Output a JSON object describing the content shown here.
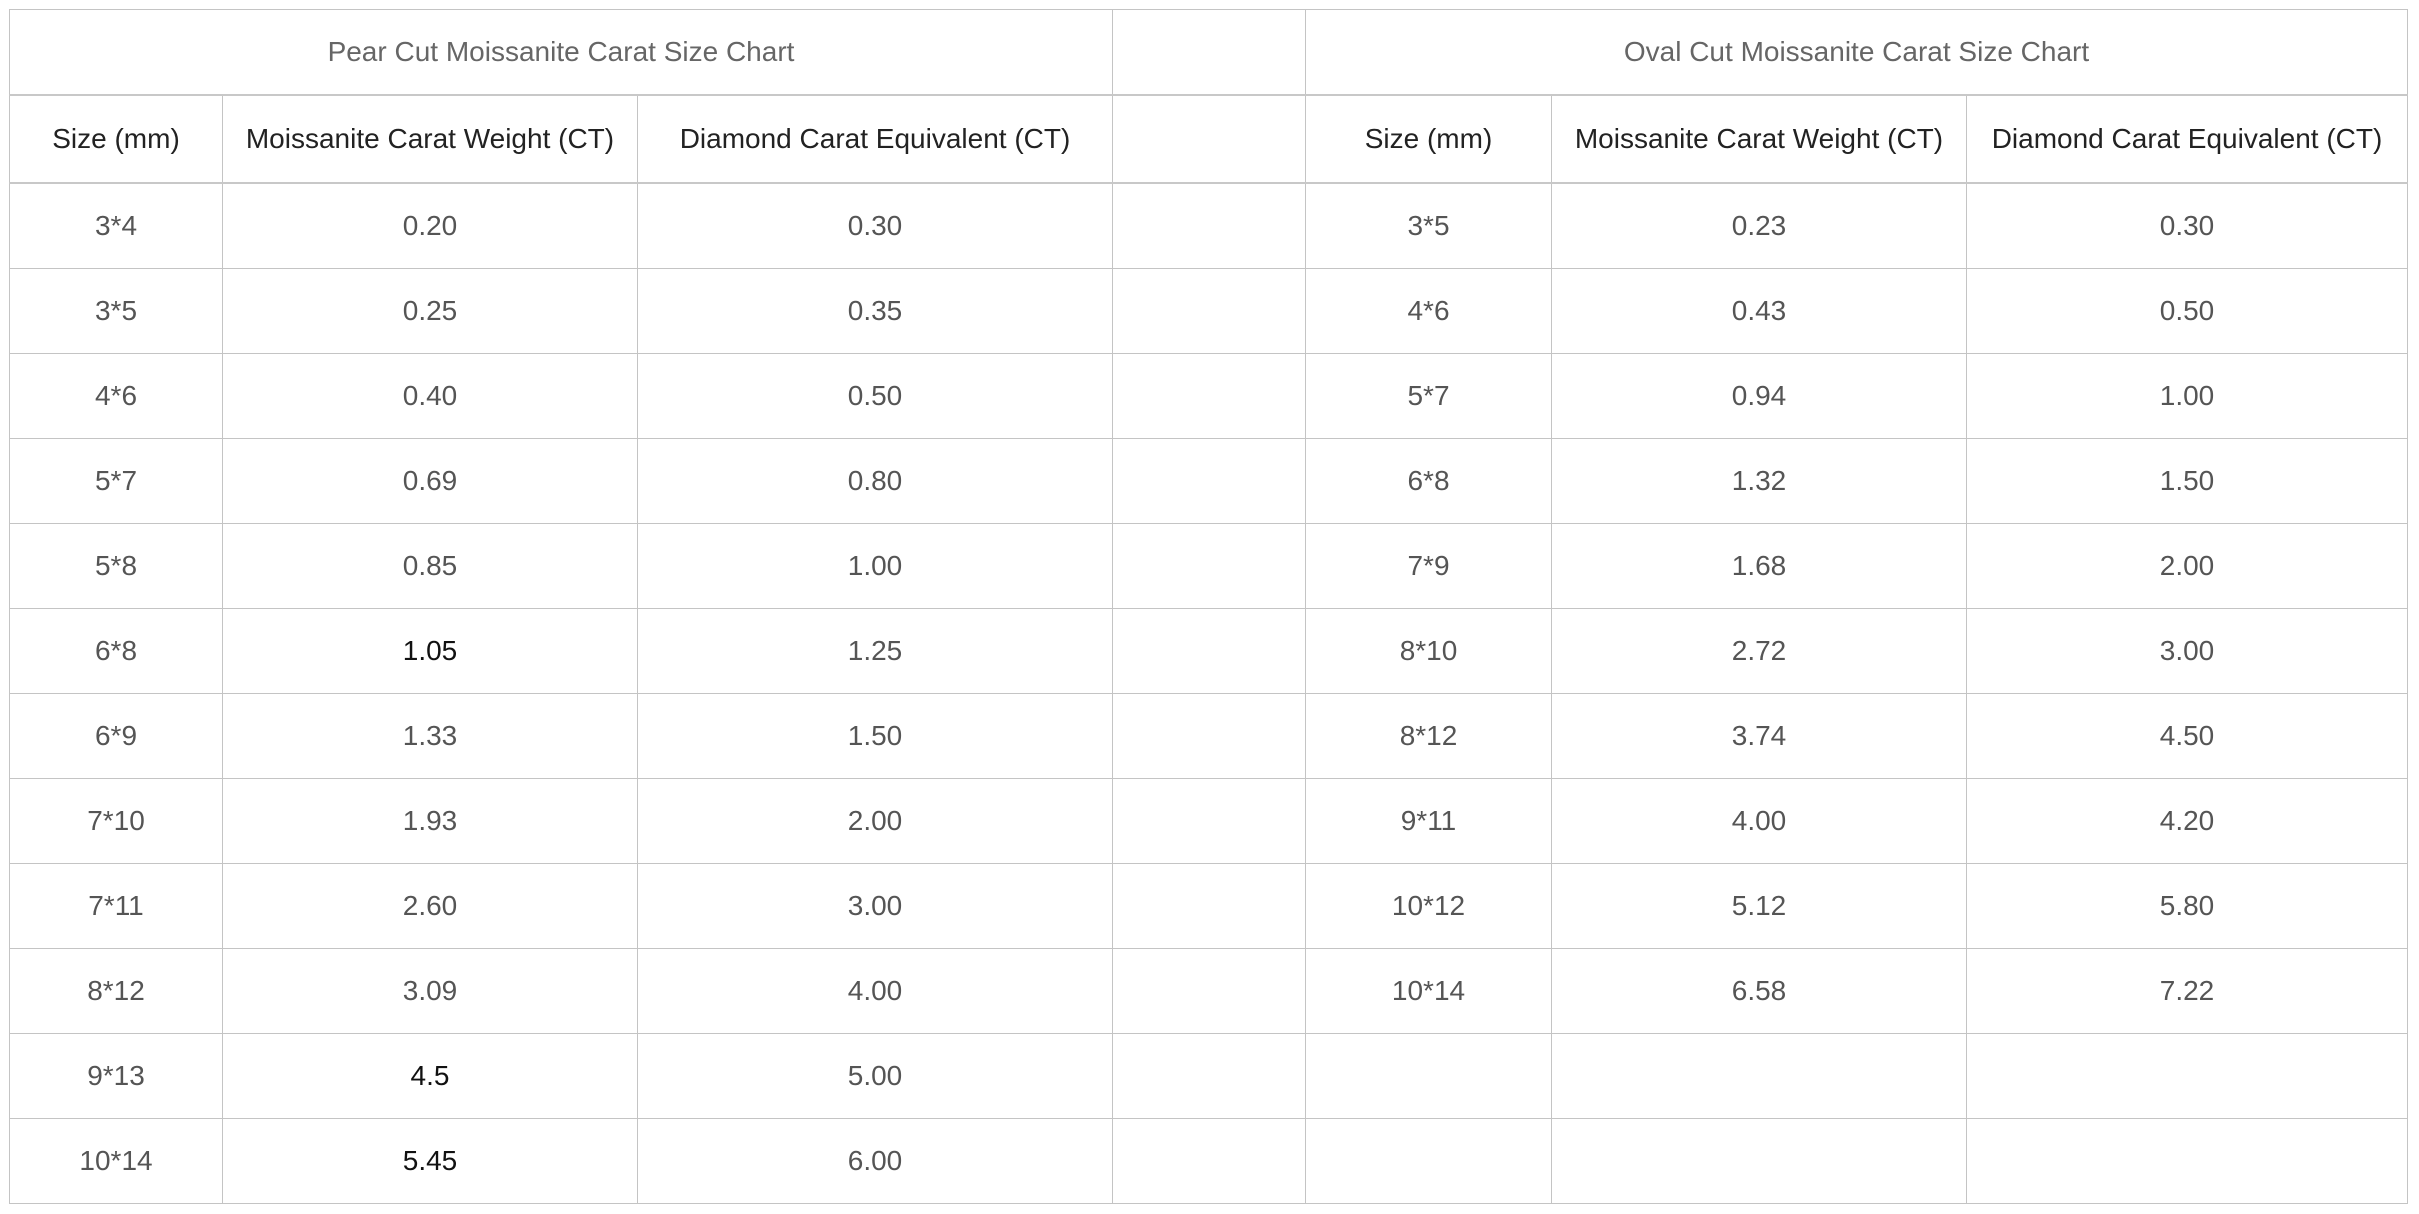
{
  "pear": {
    "title": "Pear Cut Moissanite Carat Size Chart",
    "headers": [
      "Size (mm)",
      "Moissanite Carat Weight (CT)",
      "Diamond Carat Equivalent (CT)"
    ],
    "rows": [
      [
        "3*4",
        "0.20",
        "0.30"
      ],
      [
        "3*5",
        "0.25",
        "0.35"
      ],
      [
        "4*6",
        "0.40",
        "0.50"
      ],
      [
        "5*7",
        "0.69",
        "0.80"
      ],
      [
        "5*8",
        "0.85",
        "1.00"
      ],
      [
        "6*8",
        "1.05",
        "1.25"
      ],
      [
        "6*9",
        "1.33",
        "1.50"
      ],
      [
        "7*10",
        "1.93",
        "2.00"
      ],
      [
        "7*11",
        "2.60",
        "3.00"
      ],
      [
        "8*12",
        "3.09",
        "4.00"
      ],
      [
        "9*13",
        "4.5",
        "5.00"
      ],
      [
        "10*14",
        "5.45",
        "6.00"
      ]
    ]
  },
  "oval": {
    "title": "Oval Cut Moissanite Carat Size Chart",
    "headers": [
      "Size (mm)",
      "Moissanite Carat Weight (CT)",
      "Diamond Carat Equivalent (CT)"
    ],
    "rows": [
      [
        "3*5",
        "0.23",
        "0.30"
      ],
      [
        "4*6",
        "0.43",
        "0.50"
      ],
      [
        "5*7",
        "0.94",
        "1.00"
      ],
      [
        "6*8",
        "1.32",
        "1.50"
      ],
      [
        "7*9",
        "1.68",
        "2.00"
      ],
      [
        "8*10",
        "2.72",
        "3.00"
      ],
      [
        "8*12",
        "3.74",
        "4.50"
      ],
      [
        "9*11",
        "4.00",
        "4.20"
      ],
      [
        "10*12",
        "5.12",
        "5.80"
      ],
      [
        "10*14",
        "6.58",
        "7.22"
      ]
    ]
  }
}
